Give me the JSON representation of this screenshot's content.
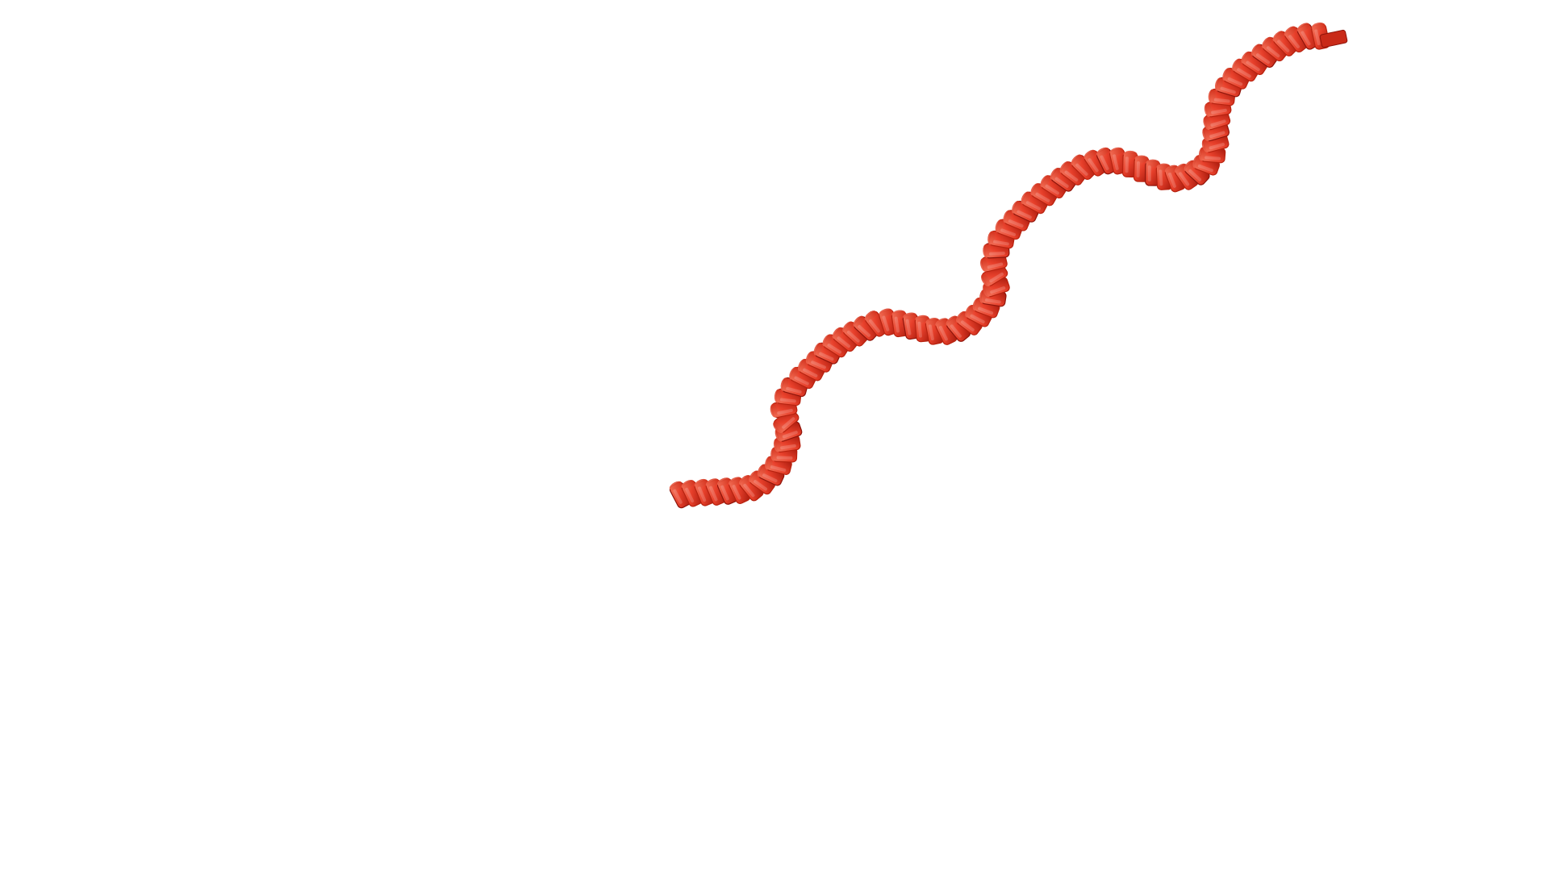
{
  "image": {
    "subject": "red-segmented-wavy-strand",
    "background_color": "#ffffff",
    "colors": {
      "highlight": "#f0705a",
      "body": "#e8402b",
      "mid": "#c92a18",
      "shadow": "#8f140a"
    }
  }
}
